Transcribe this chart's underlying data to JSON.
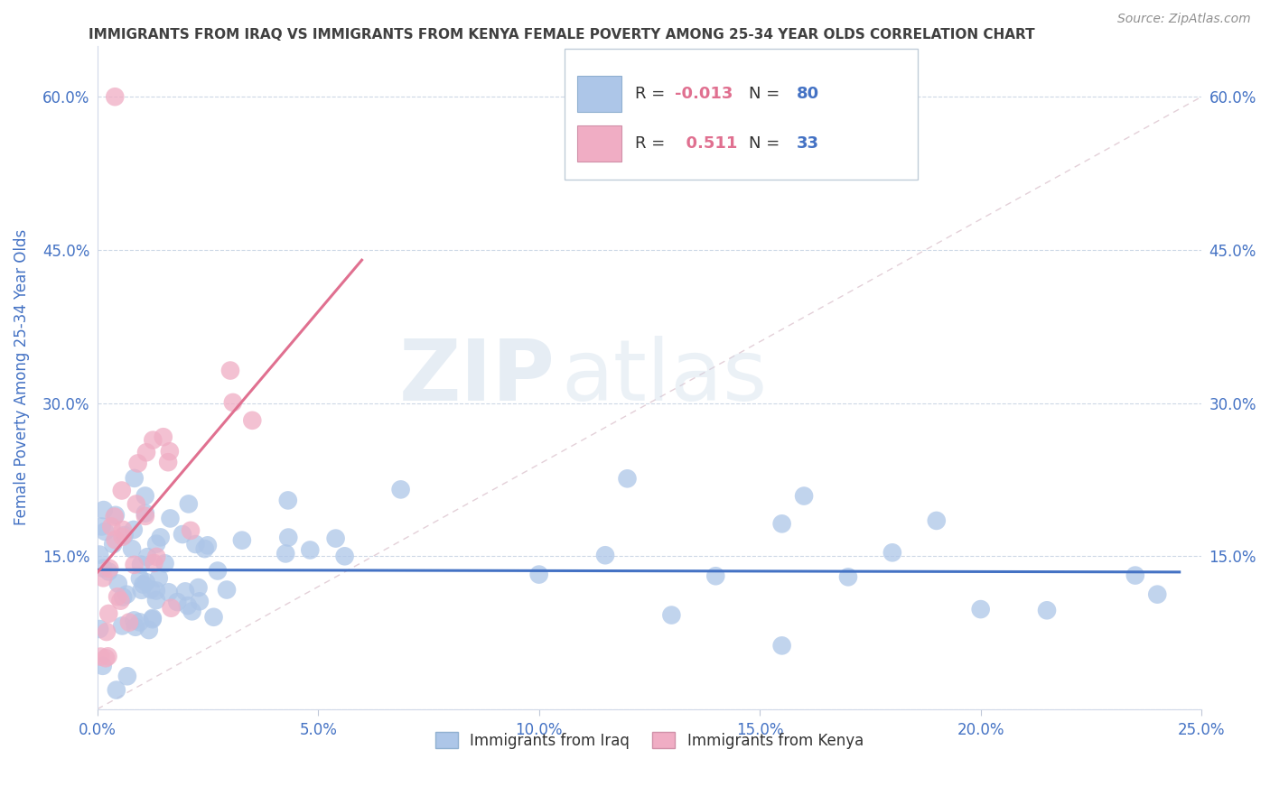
{
  "title": "IMMIGRANTS FROM IRAQ VS IMMIGRANTS FROM KENYA FEMALE POVERTY AMONG 25-34 YEAR OLDS CORRELATION CHART",
  "source": "Source: ZipAtlas.com",
  "ylabel": "Female Poverty Among 25-34 Year Olds",
  "xlabel_iraq": "Immigrants from Iraq",
  "xlabel_kenya": "Immigrants from Kenya",
  "watermark_zip": "ZIP",
  "watermark_atlas": "atlas",
  "xlim": [
    0.0,
    0.25
  ],
  "ylim": [
    0.0,
    0.65
  ],
  "xticks": [
    0.0,
    0.05,
    0.1,
    0.15,
    0.2,
    0.25
  ],
  "xticklabels": [
    "0.0%",
    "5.0%",
    "10.0%",
    "15.0%",
    "20.0%",
    "25.0%"
  ],
  "yticks": [
    0.0,
    0.15,
    0.3,
    0.45,
    0.6
  ],
  "yticklabels": [
    "",
    "15.0%",
    "30.0%",
    "45.0%",
    "60.0%"
  ],
  "iraq_R": "-0.013",
  "iraq_N": "80",
  "kenya_R": "0.511",
  "kenya_N": "33",
  "iraq_color": "#adc6e8",
  "kenya_color": "#f0adc4",
  "iraq_line_color": "#4472c4",
  "kenya_line_color": "#e07090",
  "diag_color": "#d8bcc8",
  "title_color": "#404040",
  "axis_label_color": "#4472c4",
  "tick_color": "#4472c4",
  "background": "#ffffff",
  "legend_r_color": "#e07090",
  "legend_n_color": "#4472c4"
}
